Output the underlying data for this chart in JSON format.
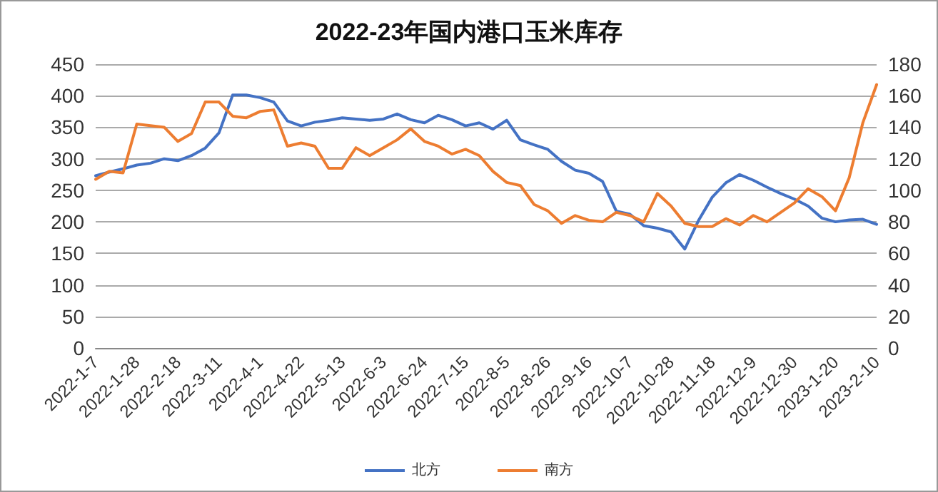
{
  "chart_data": {
    "type": "line",
    "title": "2022-23年国内港口玉米库存",
    "categories": [
      "2022-1-7",
      null,
      null,
      "2022-1-28",
      null,
      null,
      "2022-2-18",
      null,
      null,
      "2022-3-11",
      null,
      null,
      "2022-4-1",
      null,
      null,
      "2022-4-22",
      null,
      null,
      "2022-5-13",
      null,
      null,
      "2022-6-3",
      null,
      null,
      "2022-6-24",
      null,
      null,
      "2022-7-15",
      null,
      null,
      "2022-8-5",
      null,
      null,
      "2022-8-26",
      null,
      null,
      "2022-9-16",
      null,
      null,
      "2022-10-7",
      null,
      null,
      "2022-10-28",
      null,
      null,
      "2022-11-18",
      null,
      null,
      "2022-12-9",
      null,
      null,
      "2022-12-30",
      null,
      null,
      "2023-1-20",
      null,
      null,
      "2023-2-10"
    ],
    "series": [
      {
        "name": "北方",
        "color": "#4472c4",
        "values": [
          273,
          279,
          284,
          290,
          293,
          300,
          297,
          305,
          317,
          341,
          401,
          401,
          397,
          390,
          360,
          352,
          358,
          361,
          365,
          363,
          361,
          363,
          371,
          362,
          357,
          369,
          362,
          352,
          357,
          347,
          361,
          330,
          322,
          315,
          296,
          282,
          277,
          264,
          217,
          212,
          194,
          190,
          184,
          157,
          202,
          239,
          262,
          275,
          266,
          255,
          245,
          236,
          225,
          206,
          200,
          203,
          204,
          196
        ]
      },
      {
        "name": "南方",
        "color": "#ed7d31",
        "axis": "y2",
        "values": [
          107,
          112,
          111,
          142,
          141,
          140,
          131,
          136,
          156,
          156,
          147,
          146,
          150,
          151,
          128,
          130,
          128,
          114,
          114,
          127,
          122,
          127,
          132,
          139,
          131,
          128,
          123,
          126,
          122,
          112,
          105,
          103,
          91,
          87,
          79,
          84,
          81,
          80,
          86,
          84,
          80,
          98,
          90,
          79,
          77,
          77,
          82,
          78,
          84,
          80,
          86,
          92,
          101,
          96,
          87,
          108,
          143,
          167
        ]
      }
    ],
    "ylim": [
      0,
      450
    ],
    "yticks": [
      0,
      50,
      100,
      150,
      200,
      250,
      300,
      350,
      400,
      450
    ],
    "y2lim": [
      0,
      180
    ],
    "y2ticks": [
      0,
      20,
      40,
      60,
      80,
      100,
      120,
      140,
      160,
      180
    ],
    "grid": "y",
    "legend": "bottom",
    "marker": "none",
    "line_style": "solid"
  }
}
